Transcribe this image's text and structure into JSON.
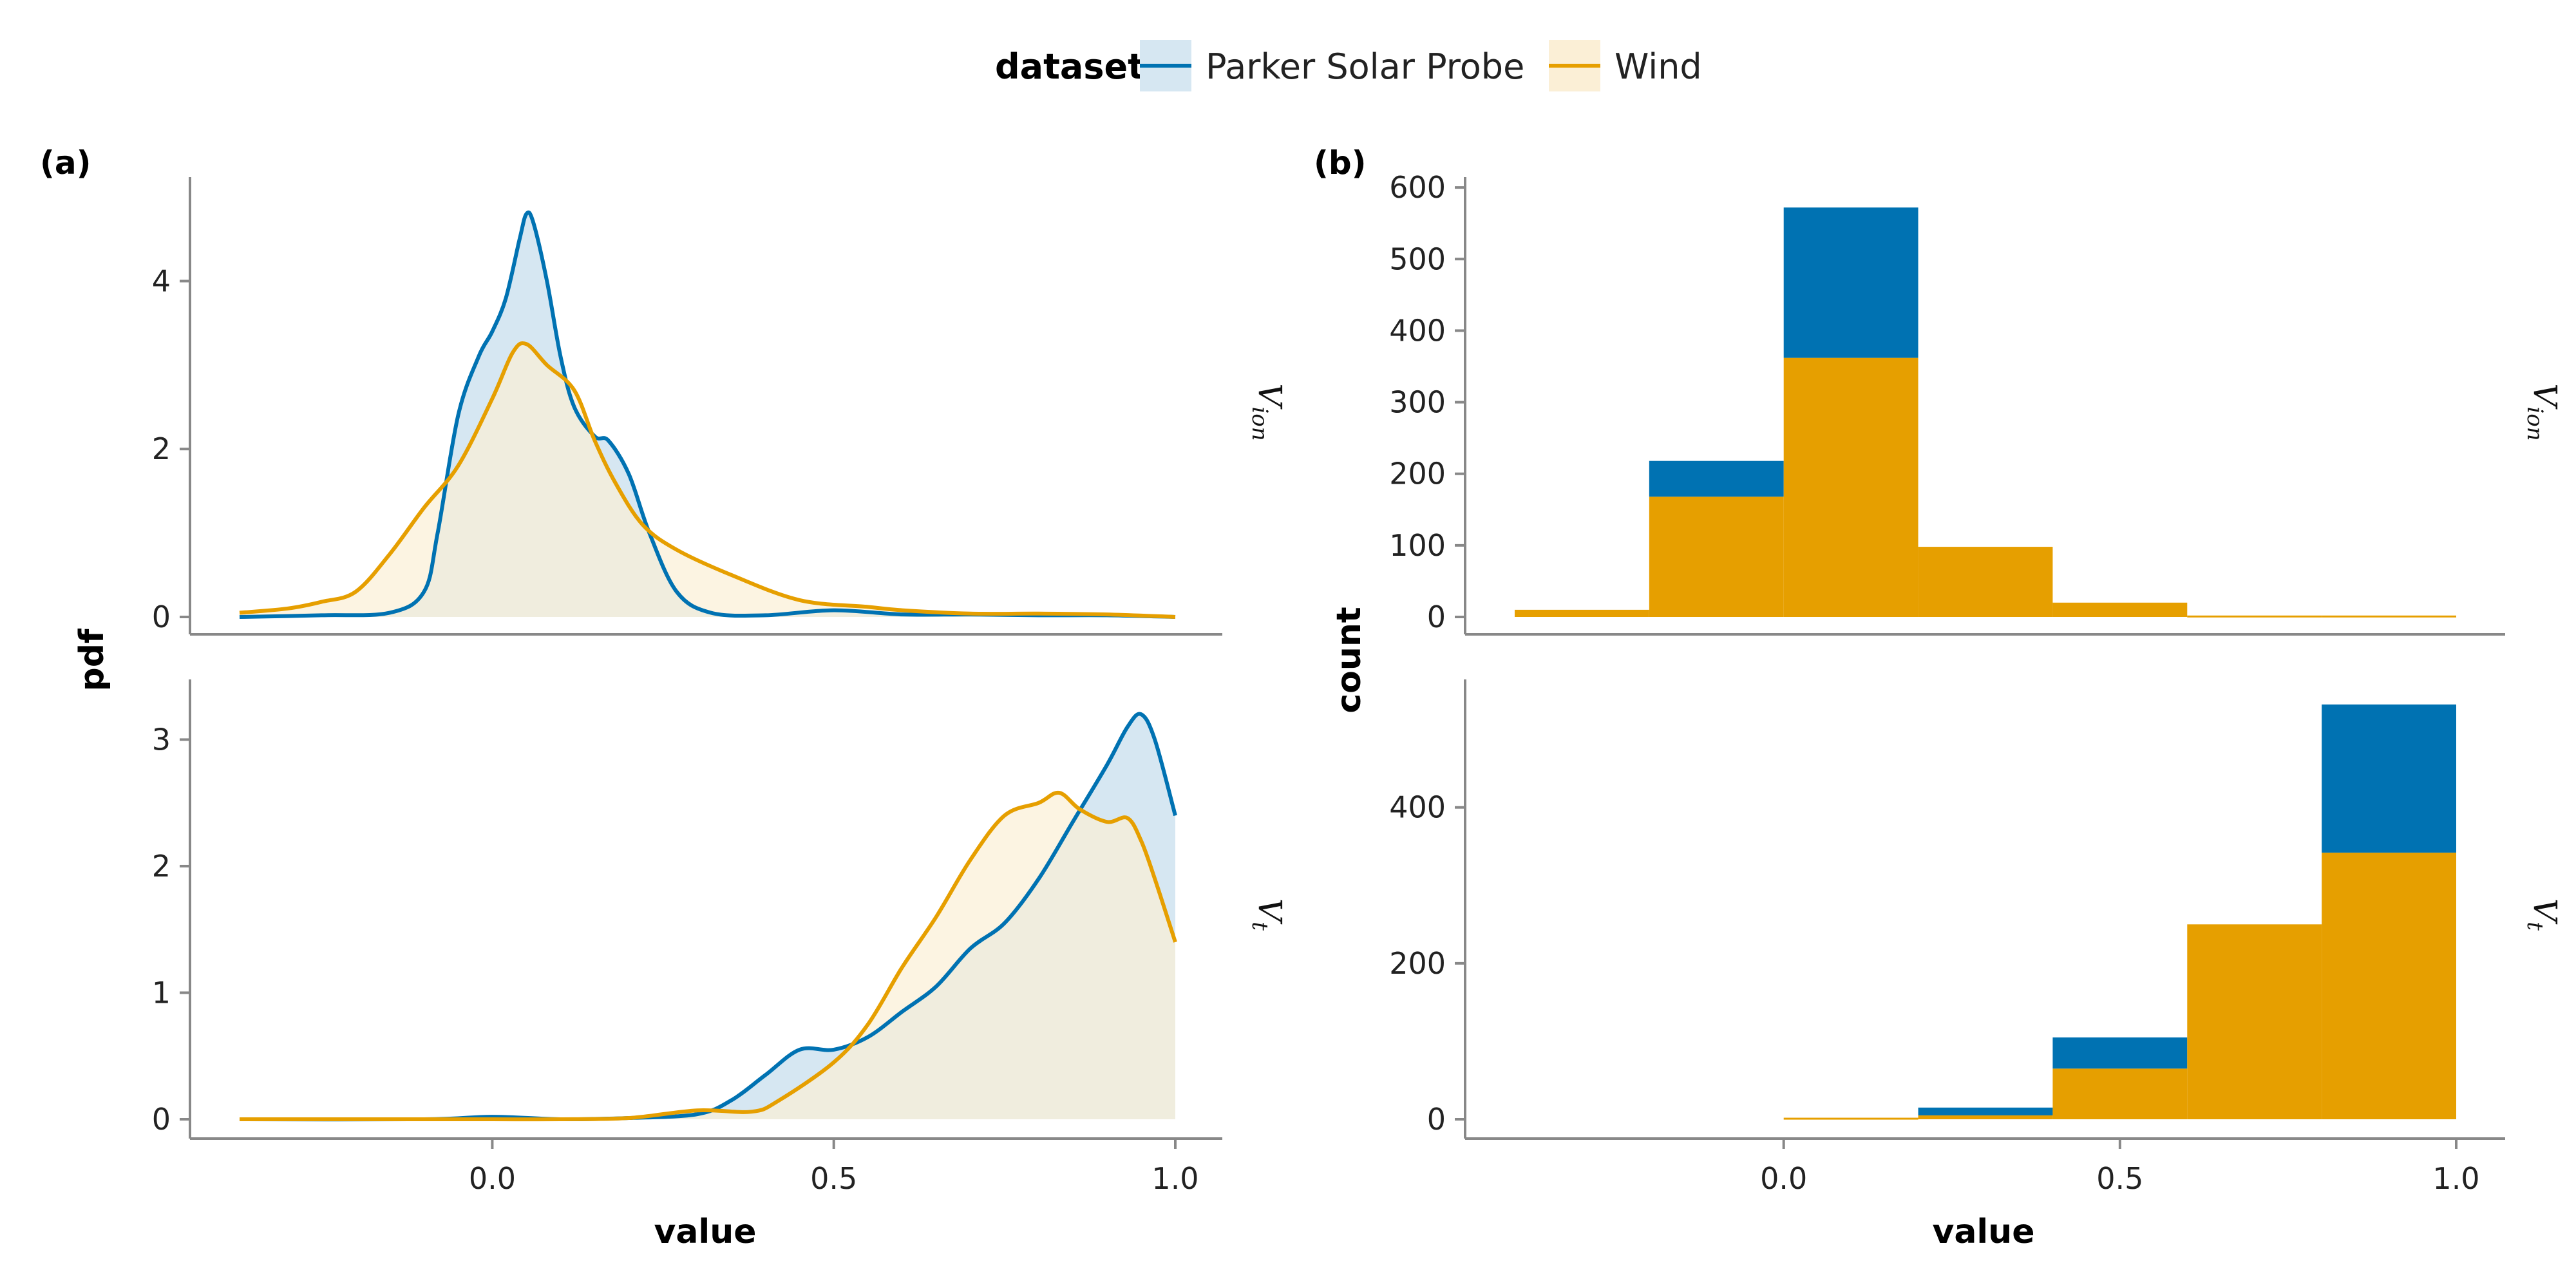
{
  "legend": {
    "title": "dataset",
    "items": [
      {
        "label": "Parker Solar Probe",
        "color": "#0072B2",
        "fill": "#D6E7F2"
      },
      {
        "label": "Wind",
        "color": "#E69F00",
        "fill": "#FBEFD6"
      }
    ]
  },
  "panels": {
    "a_label": "(a)",
    "b_label": "(b)"
  },
  "colors": {
    "psp": "#0072B2",
    "wind": "#E69F00",
    "psp_fill": "#D6E7F2",
    "wind_fill": "#FBEFD6",
    "overlap_fill": "#DCDECF"
  },
  "chart_data": [
    {
      "type": "area",
      "panel": "(a)",
      "xlabel": "value",
      "ylabel": "pdf",
      "facet_labels": [
        "V_ion",
        "V_t"
      ],
      "x_ticks": [
        "0.0",
        "0.5",
        "1.0"
      ],
      "xlim": [
        -0.43,
        1.07
      ],
      "facets": [
        {
          "facet": "V_ion",
          "ylim": [
            0,
            5.2
          ],
          "y_ticks": [
            "0",
            "2",
            "4"
          ],
          "series": [
            {
              "name": "Parker Solar Probe",
              "x": [
                -0.37,
                -0.25,
                -0.15,
                -0.1,
                -0.08,
                -0.05,
                -0.02,
                0.0,
                0.02,
                0.04,
                0.05,
                0.06,
                0.08,
                0.1,
                0.12,
                0.15,
                0.17,
                0.2,
                0.23,
                0.27,
                0.32,
                0.4,
                0.5,
                0.6,
                0.7,
                0.8,
                0.9,
                1.0
              ],
              "y": [
                0.0,
                0.02,
                0.05,
                0.3,
                1.0,
                2.4,
                3.1,
                3.4,
                3.8,
                4.5,
                4.8,
                4.7,
                4.0,
                3.1,
                2.5,
                2.15,
                2.1,
                1.7,
                1.0,
                0.3,
                0.05,
                0.02,
                0.08,
                0.03,
                0.03,
                0.02,
                0.02,
                0.0
              ]
            },
            {
              "name": "Wind",
              "x": [
                -0.37,
                -0.3,
                -0.25,
                -0.2,
                -0.15,
                -0.1,
                -0.05,
                0.0,
                0.03,
                0.05,
                0.08,
                0.12,
                0.15,
                0.18,
                0.22,
                0.27,
                0.35,
                0.45,
                0.55,
                0.6,
                0.7,
                0.8,
                0.9,
                1.0
              ],
              "y": [
                0.05,
                0.1,
                0.18,
                0.3,
                0.75,
                1.3,
                1.8,
                2.6,
                3.15,
                3.25,
                3.0,
                2.7,
                2.1,
                1.6,
                1.1,
                0.8,
                0.5,
                0.2,
                0.12,
                0.08,
                0.04,
                0.04,
                0.03,
                0.0
              ]
            }
          ]
        },
        {
          "facet": "V_t",
          "ylim": [
            0,
            3.45
          ],
          "y_ticks": [
            "0",
            "1",
            "2",
            "3"
          ],
          "series": [
            {
              "name": "Parker Solar Probe",
              "x": [
                -0.37,
                -0.1,
                0.0,
                0.1,
                0.2,
                0.3,
                0.35,
                0.4,
                0.45,
                0.5,
                0.55,
                0.6,
                0.65,
                0.7,
                0.75,
                0.8,
                0.85,
                0.9,
                0.93,
                0.95,
                0.97,
                1.0
              ],
              "y": [
                0.0,
                0.0,
                0.02,
                0.0,
                0.01,
                0.04,
                0.15,
                0.35,
                0.55,
                0.55,
                0.65,
                0.85,
                1.05,
                1.35,
                1.55,
                1.9,
                2.35,
                2.8,
                3.1,
                3.2,
                3.0,
                2.4
              ]
            },
            {
              "name": "Wind",
              "x": [
                -0.37,
                -0.1,
                0.0,
                0.1,
                0.2,
                0.3,
                0.38,
                0.42,
                0.5,
                0.55,
                0.6,
                0.65,
                0.7,
                0.75,
                0.8,
                0.83,
                0.86,
                0.9,
                0.93,
                0.95,
                0.97,
                1.0
              ],
              "y": [
                0.0,
                0.0,
                0.0,
                0.0,
                0.01,
                0.07,
                0.06,
                0.15,
                0.45,
                0.75,
                1.2,
                1.6,
                2.05,
                2.4,
                2.5,
                2.58,
                2.45,
                2.35,
                2.38,
                2.2,
                1.9,
                1.4
              ]
            }
          ]
        }
      ]
    },
    {
      "type": "bar",
      "panel": "(b)",
      "stacked": true,
      "xlabel": "value",
      "ylabel": "count",
      "facet_labels": [
        "V_ion",
        "V_t"
      ],
      "x_ticks": [
        "0.0",
        "0.5",
        "1.0"
      ],
      "xlim": [
        -0.43,
        1.07
      ],
      "bin_edges": [
        -0.4,
        -0.2,
        0.0,
        0.2,
        0.4,
        0.6,
        0.8,
        1.0
      ],
      "facets": [
        {
          "facet": "V_ion",
          "ylim": [
            0,
            610
          ],
          "y_ticks": [
            "0",
            "100",
            "200",
            "300",
            "400",
            "500",
            "600"
          ],
          "series": [
            {
              "name": "Wind",
              "values": [
                10,
                168,
                362,
                98,
                20,
                2,
                2
              ]
            },
            {
              "name": "Parker Solar Probe",
              "values": [
                0,
                50,
                210,
                0,
                0,
                0,
                0
              ]
            }
          ]
        },
        {
          "facet": "V_t",
          "ylim": [
            0,
            560
          ],
          "y_ticks": [
            "0",
            "200",
            "400"
          ],
          "series": [
            {
              "name": "Wind",
              "values": [
                0,
                0,
                2,
                5,
                65,
                250,
                342
              ]
            },
            {
              "name": "Parker Solar Probe",
              "values": [
                0,
                0,
                0,
                10,
                40,
                0,
                190
              ]
            }
          ]
        }
      ]
    }
  ]
}
